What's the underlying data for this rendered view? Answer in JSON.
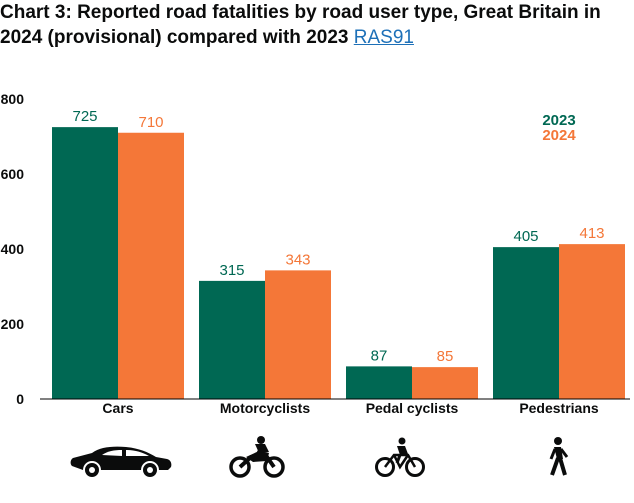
{
  "header": {
    "title": "Chart 3: Reported road fatalities by road user type, Great Britain in 2024 (provisional) compared with 2023",
    "link_text": "RAS91"
  },
  "colors": {
    "series_2023": "#006853",
    "series_2024": "#f47738",
    "axis": "#000000"
  },
  "icons": [
    "car-icon",
    "motorcycle-icon",
    "bicycle-icon",
    "pedestrian-icon"
  ],
  "chart_data": {
    "type": "bar",
    "title": "Chart 3: Reported road fatalities by road user type, Great Britain in 2024 (provisional) compared with 2023",
    "xlabel": "",
    "ylabel": "",
    "categories": [
      "Cars",
      "Motorcyclists",
      "Pedal cyclists",
      "Pedestrians"
    ],
    "series": [
      {
        "name": "2023",
        "values": [
          725,
          315,
          87,
          405
        ]
      },
      {
        "name": "2024",
        "values": [
          710,
          343,
          85,
          413
        ]
      }
    ],
    "ylim": [
      0,
      800
    ],
    "yticks": [
      0,
      200,
      400,
      600,
      800
    ],
    "legend_position": "top-right",
    "grid": false
  }
}
